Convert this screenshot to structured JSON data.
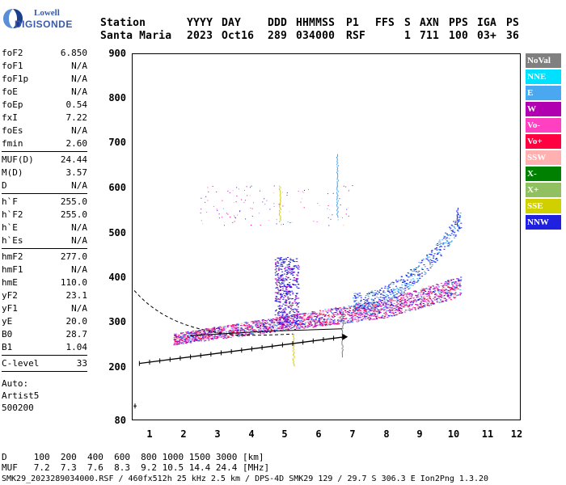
{
  "logo": {
    "line1": "Lowell",
    "line2": "DIGISONDE"
  },
  "header": {
    "labels": [
      "Station",
      "YYYY",
      "DAY",
      "DDD",
      "HHMMSS",
      "P1",
      "FFS",
      "S",
      "AXN",
      "PPS",
      "IGA",
      "PS"
    ],
    "values": [
      "Santa Maria",
      "2023",
      "Oct16",
      "289",
      "034000",
      "RSF",
      "1",
      "711",
      "100",
      "03+",
      "36"
    ]
  },
  "params": {
    "group1": [
      {
        "label": "foF2",
        "value": "6.850"
      },
      {
        "label": "foF1",
        "value": "N/A"
      },
      {
        "label": "foF1p",
        "value": "N/A"
      },
      {
        "label": "foE",
        "value": "N/A"
      },
      {
        "label": "foEp",
        "value": "0.54"
      },
      {
        "label": "fxI",
        "value": "7.22"
      },
      {
        "label": "foEs",
        "value": "N/A"
      },
      {
        "label": "fmin",
        "value": "2.60"
      }
    ],
    "group2": [
      {
        "label": "MUF(D)",
        "value": "24.44"
      },
      {
        "label": "M(D)",
        "value": "3.57"
      },
      {
        "label": "D",
        "value": "N/A"
      }
    ],
    "group3": [
      {
        "label": "h`F",
        "value": "255.0"
      },
      {
        "label": "h`F2",
        "value": "255.0"
      },
      {
        "label": "h`E",
        "value": "N/A"
      },
      {
        "label": "h`Es",
        "value": "N/A"
      }
    ],
    "group4": [
      {
        "label": "hmF2",
        "value": "277.0"
      },
      {
        "label": "hmF1",
        "value": "N/A"
      },
      {
        "label": "hmE",
        "value": "110.0"
      },
      {
        "label": "yF2",
        "value": "23.1"
      },
      {
        "label": "yF1",
        "value": "N/A"
      },
      {
        "label": "yE",
        "value": "20.0"
      },
      {
        "label": "B0",
        "value": "28.7"
      },
      {
        "label": "B1",
        "value": "1.04"
      }
    ],
    "group5": [
      {
        "label": "C-level",
        "value": "33"
      }
    ],
    "auto_lines": [
      "Auto:",
      "Artist5",
      "500200"
    ]
  },
  "plot": {
    "y_ticks": [
      "900",
      "800",
      "700",
      "600",
      "500",
      "400",
      "300",
      "200",
      "80"
    ],
    "x_ticks": [
      "1",
      "2",
      "3",
      "4",
      "5",
      "6",
      "7",
      "8",
      "9",
      "10",
      "11",
      "12"
    ]
  },
  "legend": [
    {
      "label": "NoVal",
      "color": "#808080"
    },
    {
      "label": "NNE",
      "color": "#00e0ff"
    },
    {
      "label": "E",
      "color": "#4aa8f0"
    },
    {
      "label": "W",
      "color": "#b000b0"
    },
    {
      "label": "Vo-",
      "color": "#ff40c0"
    },
    {
      "label": "Vo+",
      "color": "#ff0040"
    },
    {
      "label": "SSW",
      "color": "#ffb0b0"
    },
    {
      "label": "X-",
      "color": "#008000"
    },
    {
      "label": "X+",
      "color": "#90c060"
    },
    {
      "label": "SSE",
      "color": "#d0d000"
    },
    {
      "label": "NNW",
      "color": "#2020e0"
    }
  ],
  "footer": {
    "d_row": "D     100  200  400  600  800 1000 1500 3000 [km]",
    "muf_row": "MUF   7.2  7.3  7.6  8.3  9.2 10.5 14.4 24.4 [MHz]",
    "file_line": "SMK29_2023289034000.RSF / 460fx512h 25 kHz 2.5 km / DPS-4D SMK29 129 / 29.7 S 306.3 E Ion2Png 1.3.20"
  }
}
